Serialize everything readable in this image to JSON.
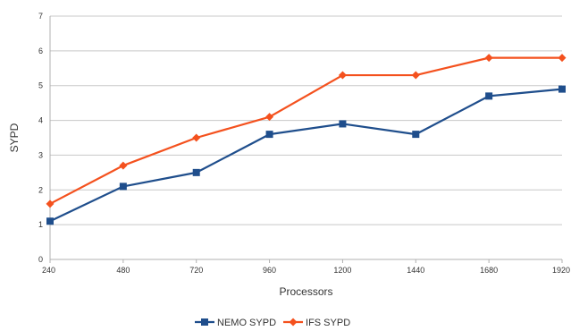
{
  "chart_data": {
    "type": "line",
    "title": "",
    "xlabel": "Processors",
    "ylabel": "SYPD",
    "x": [
      240,
      480,
      720,
      960,
      1200,
      1440,
      1680,
      1920
    ],
    "x_tick_labels": [
      "240",
      "480",
      "720",
      "960",
      "1200",
      "1440",
      "1680",
      "1920"
    ],
    "ylim": [
      0,
      7
    ],
    "y_ticks": [
      0,
      1,
      2,
      3,
      4,
      5,
      6,
      7
    ],
    "grid": true,
    "legend_position": "bottom",
    "series": [
      {
        "name": "NEMO SYPD",
        "color": "#1f4e8c",
        "marker": "square",
        "values": [
          1.1,
          2.1,
          2.5,
          3.6,
          3.9,
          3.6,
          4.7,
          4.9
        ]
      },
      {
        "name": "IFS SYPD",
        "color": "#f4511e",
        "marker": "diamond",
        "values": [
          1.6,
          2.7,
          3.5,
          4.1,
          5.3,
          5.3,
          5.8,
          5.8
        ]
      }
    ]
  }
}
